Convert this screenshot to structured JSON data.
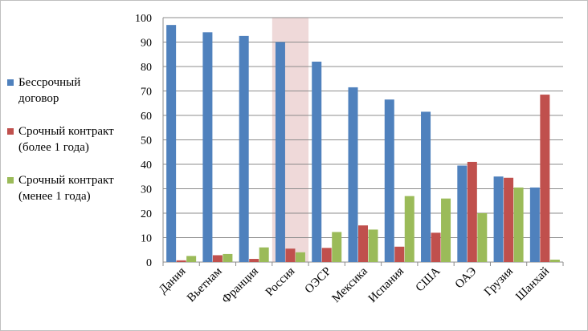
{
  "chart_data": {
    "type": "bar",
    "categories": [
      "Дания",
      "Вьетнам",
      "Франция",
      "Россия",
      "ОЭСР",
      "Мексика",
      "Испания",
      "США",
      "ОАЭ",
      "Грузия",
      "Шанхай"
    ],
    "highlight_category": "Россия",
    "highlight_color": "#efd9d9",
    "series": [
      {
        "name": "Бессрочный\nдоговор",
        "color": "#4f81bd",
        "values": [
          97,
          94,
          92.5,
          90,
          82,
          71.5,
          66.5,
          61.5,
          39.5,
          35,
          30.5
        ]
      },
      {
        "name": "Срочный контракт\n(более 1 года)",
        "color": "#c0504d",
        "values": [
          0.7,
          2.8,
          1.3,
          5.5,
          5.8,
          15,
          6.3,
          12,
          41,
          34.5,
          68.5
        ]
      },
      {
        "name": "Срочный контракт\n(менее 1 года)",
        "color": "#9bbb59",
        "values": [
          2.5,
          3.3,
          6,
          4,
          12.3,
          13.3,
          27,
          26,
          20,
          30.5,
          1
        ]
      }
    ],
    "ylim": [
      0,
      100
    ],
    "yticks": [
      0,
      10,
      20,
      30,
      40,
      50,
      60,
      70,
      80,
      90,
      100
    ],
    "grid": true,
    "legend_position": "left",
    "xlabel": "",
    "ylabel": ""
  }
}
